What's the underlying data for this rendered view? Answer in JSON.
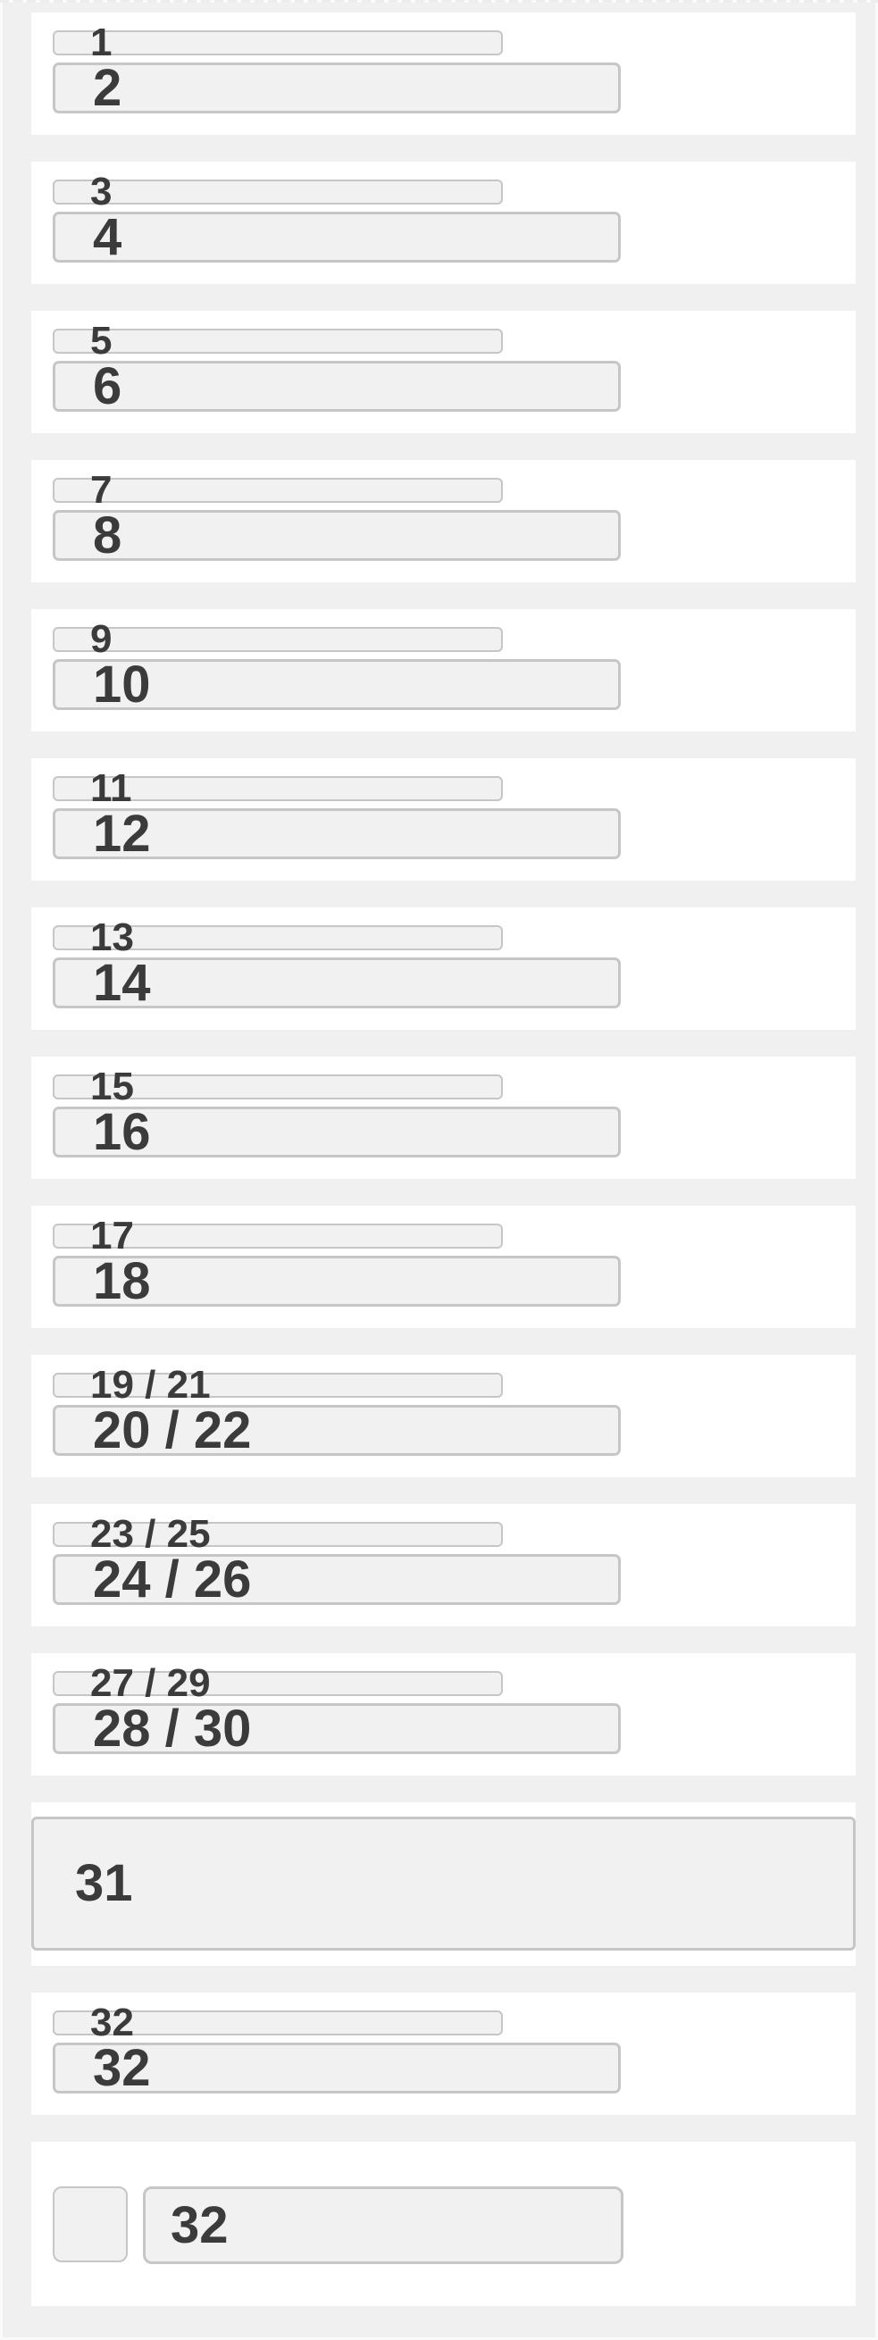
{
  "page": {
    "background_color": "#f0f0f0",
    "card_background_color": "#ffffff",
    "field_background_color": "#f1f1f1",
    "field_border_color": "#c6c6c6",
    "text_color": "#3b3b3b"
  },
  "cards": [
    {
      "label": "1",
      "value": "2"
    },
    {
      "label": "3",
      "value": "4"
    },
    {
      "label": "5",
      "value": "6"
    },
    {
      "label": "7",
      "value": "8"
    },
    {
      "label": "9",
      "value": "10"
    },
    {
      "label": "11",
      "value": "12"
    },
    {
      "label": "13",
      "value": "14"
    },
    {
      "label": "15",
      "value": "16"
    },
    {
      "label": "17",
      "value": "18"
    },
    {
      "label": "19 / 21",
      "value": "20 / 22"
    },
    {
      "label": "23 / 25",
      "value": "24 / 26"
    },
    {
      "label": "27 / 29",
      "value": "28 / 30"
    },
    {
      "value": "31"
    },
    {
      "label": "32",
      "value": "32"
    },
    {
      "checkbox": "",
      "value": "32"
    }
  ]
}
